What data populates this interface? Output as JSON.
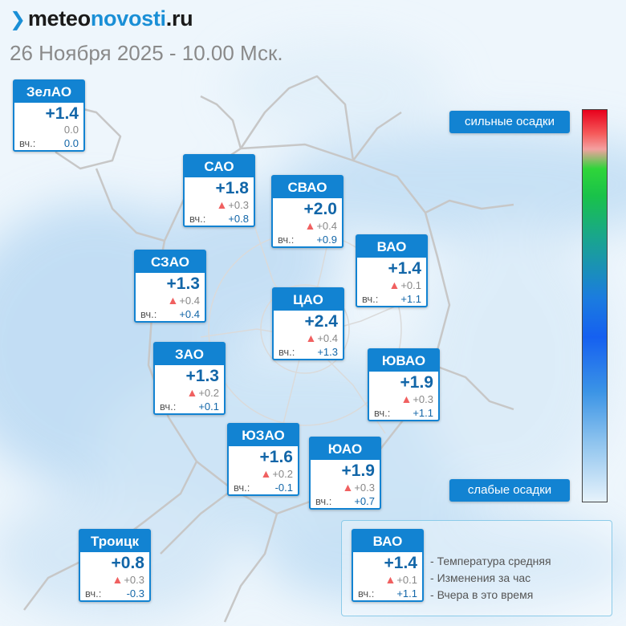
{
  "brand": {
    "prefix": "meteo",
    "accent": "novosti",
    "tld": ".ru"
  },
  "datetime": "26 Ноября 2025 - 10.00 Мск.",
  "labels": {
    "yesterday": "вч.:"
  },
  "districts": [
    {
      "id": "zelao",
      "name": "ЗелАО",
      "temp": "+1.4",
      "change": "0.0",
      "change_up": false,
      "yesterday": "0.0"
    },
    {
      "id": "sao",
      "name": "САО",
      "temp": "+1.8",
      "change": "+0.3",
      "change_up": true,
      "yesterday": "+0.8"
    },
    {
      "id": "svao",
      "name": "СВАО",
      "temp": "+2.0",
      "change": "+0.4",
      "change_up": true,
      "yesterday": "+0.9"
    },
    {
      "id": "szao",
      "name": "СЗАО",
      "temp": "+1.3",
      "change": "+0.4",
      "change_up": true,
      "yesterday": "+0.4"
    },
    {
      "id": "vao",
      "name": "ВАО",
      "temp": "+1.4",
      "change": "+0.1",
      "change_up": true,
      "yesterday": "+1.1"
    },
    {
      "id": "cao",
      "name": "ЦАО",
      "temp": "+2.4",
      "change": "+0.4",
      "change_up": true,
      "yesterday": "+1.3"
    },
    {
      "id": "zao",
      "name": "ЗАО",
      "temp": "+1.3",
      "change": "+0.2",
      "change_up": true,
      "yesterday": "+0.1"
    },
    {
      "id": "yuvao",
      "name": "ЮВАО",
      "temp": "+1.9",
      "change": "+0.3",
      "change_up": true,
      "yesterday": "+1.1"
    },
    {
      "id": "yuzao",
      "name": "ЮЗАО",
      "temp": "+1.6",
      "change": "+0.2",
      "change_up": true,
      "yesterday": "-0.1"
    },
    {
      "id": "yuao",
      "name": "ЮАО",
      "temp": "+1.9",
      "change": "+0.3",
      "change_up": true,
      "yesterday": "+0.7"
    },
    {
      "id": "troitsk",
      "name": "Троицк",
      "temp": "+0.8",
      "change": "+0.3",
      "change_up": true,
      "yesterday": "-0.3"
    }
  ],
  "precip_legend": {
    "high": "сильные осадки",
    "low": "слабые осадки",
    "colors": [
      "#e8001c",
      "#2fd53a",
      "#1b7cdf",
      "#1560f0",
      "#e6f2fb"
    ]
  },
  "info": {
    "example": {
      "name": "ВАО",
      "temp": "+1.4",
      "change": "+0.1",
      "change_up": true,
      "yesterday": "+1.1"
    },
    "items": [
      "Температура средняя",
      "Изменения за час",
      "Вчера в это время"
    ]
  },
  "colors": {
    "accent": "#1283d2",
    "temp_text": "#1266a8",
    "change_up": "#f06060"
  }
}
